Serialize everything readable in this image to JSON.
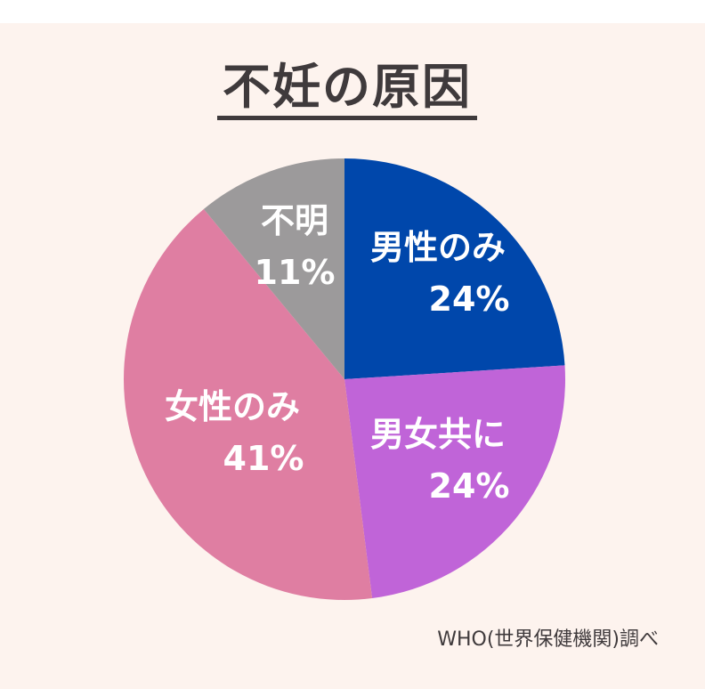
{
  "title": "不妊の原因",
  "source": "WHO(世界保健機関)調べ",
  "chart_data": {
    "type": "pie",
    "title": "不妊の原因",
    "categories": [
      "男性のみ",
      "男女共に",
      "女性のみ",
      "不明"
    ],
    "values": [
      24,
      24,
      41,
      11
    ],
    "labels": [
      "24%",
      "24%",
      "41%",
      "11%"
    ],
    "colors": [
      "#0047ab",
      "#c064d8",
      "#df7ea2",
      "#9c9a9b"
    ],
    "start": "12 o'clock",
    "direction": "clockwise"
  }
}
